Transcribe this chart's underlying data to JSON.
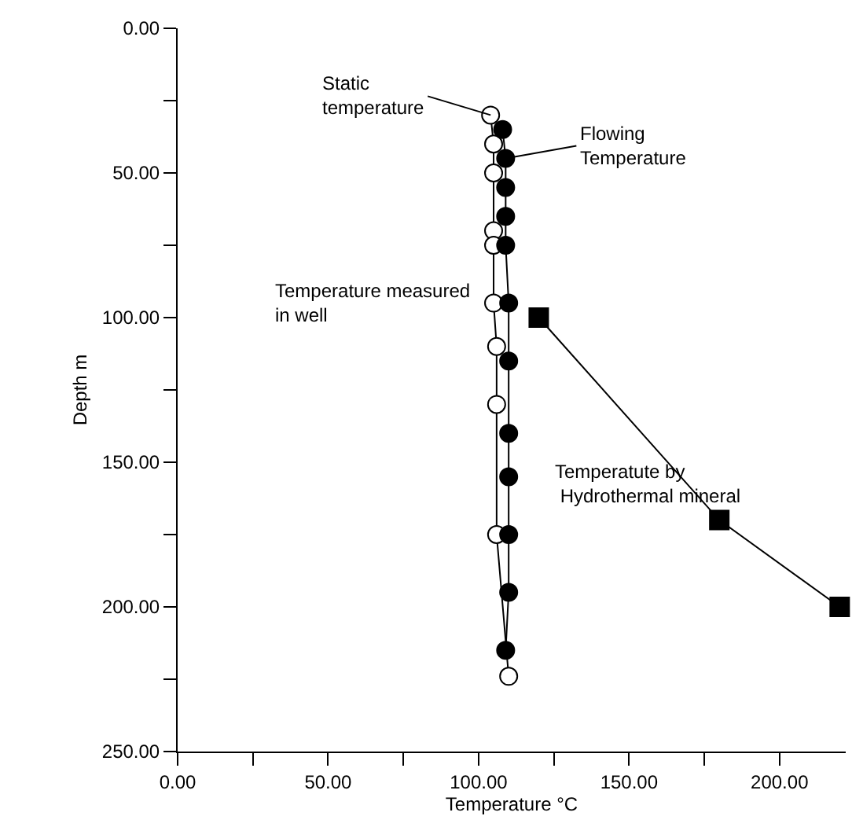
{
  "chart_data": {
    "type": "line",
    "xlabel": "Temperature °C",
    "ylabel": "Depth m",
    "xlim": [
      0,
      222
    ],
    "ylim": [
      250,
      0
    ],
    "xticks": [
      {
        "value": 0,
        "label": "0.00"
      },
      {
        "value": 25,
        "label": null
      },
      {
        "value": 50,
        "label": "50.00"
      },
      {
        "value": 75,
        "label": null
      },
      {
        "value": 100,
        "label": "100.00"
      },
      {
        "value": 125,
        "label": null
      },
      {
        "value": 150,
        "label": "150.00"
      },
      {
        "value": 175,
        "label": null
      },
      {
        "value": 200,
        "label": "200.00"
      }
    ],
    "yticks": [
      {
        "value": 0,
        "label": "0.00"
      },
      {
        "value": 25,
        "label": null
      },
      {
        "value": 50,
        "label": "50.00"
      },
      {
        "value": 75,
        "label": null
      },
      {
        "value": 100,
        "label": "100.00"
      },
      {
        "value": 125,
        "label": null
      },
      {
        "value": 150,
        "label": "150.00"
      },
      {
        "value": 175,
        "label": null
      },
      {
        "value": 200,
        "label": "200.00"
      },
      {
        "value": 225,
        "label": null
      },
      {
        "value": 250,
        "label": "250.00"
      }
    ],
    "series": [
      {
        "color": "#000000",
        "marker": "circle-open",
        "x": [
          104,
          105,
          105,
          105,
          105,
          105,
          106,
          106,
          106,
          110
        ],
        "values": [
          30,
          40,
          50,
          70,
          75,
          95,
          110,
          130,
          175,
          224
        ]
      },
      {
        "color": "#000000",
        "marker": "circle",
        "x": [
          108,
          109,
          109,
          109,
          109,
          110,
          110,
          110,
          110,
          110,
          110,
          109
        ],
        "values": [
          35,
          45,
          55,
          65,
          75,
          95,
          115,
          140,
          155,
          175,
          195,
          215
        ]
      },
      {
        "color": "#000000",
        "marker": "square",
        "x": [
          120,
          180,
          220
        ],
        "values": [
          100,
          170,
          200
        ]
      }
    ],
    "annotations": [
      {
        "text": "Static\ntemperature",
        "x": 104,
        "y": 30
      },
      {
        "text": "Flowing\nTemperature",
        "x": 109,
        "y": 45
      },
      "Temperature measured\nin well",
      "Temperatute by\n Hydrothermal mineral"
    ]
  }
}
